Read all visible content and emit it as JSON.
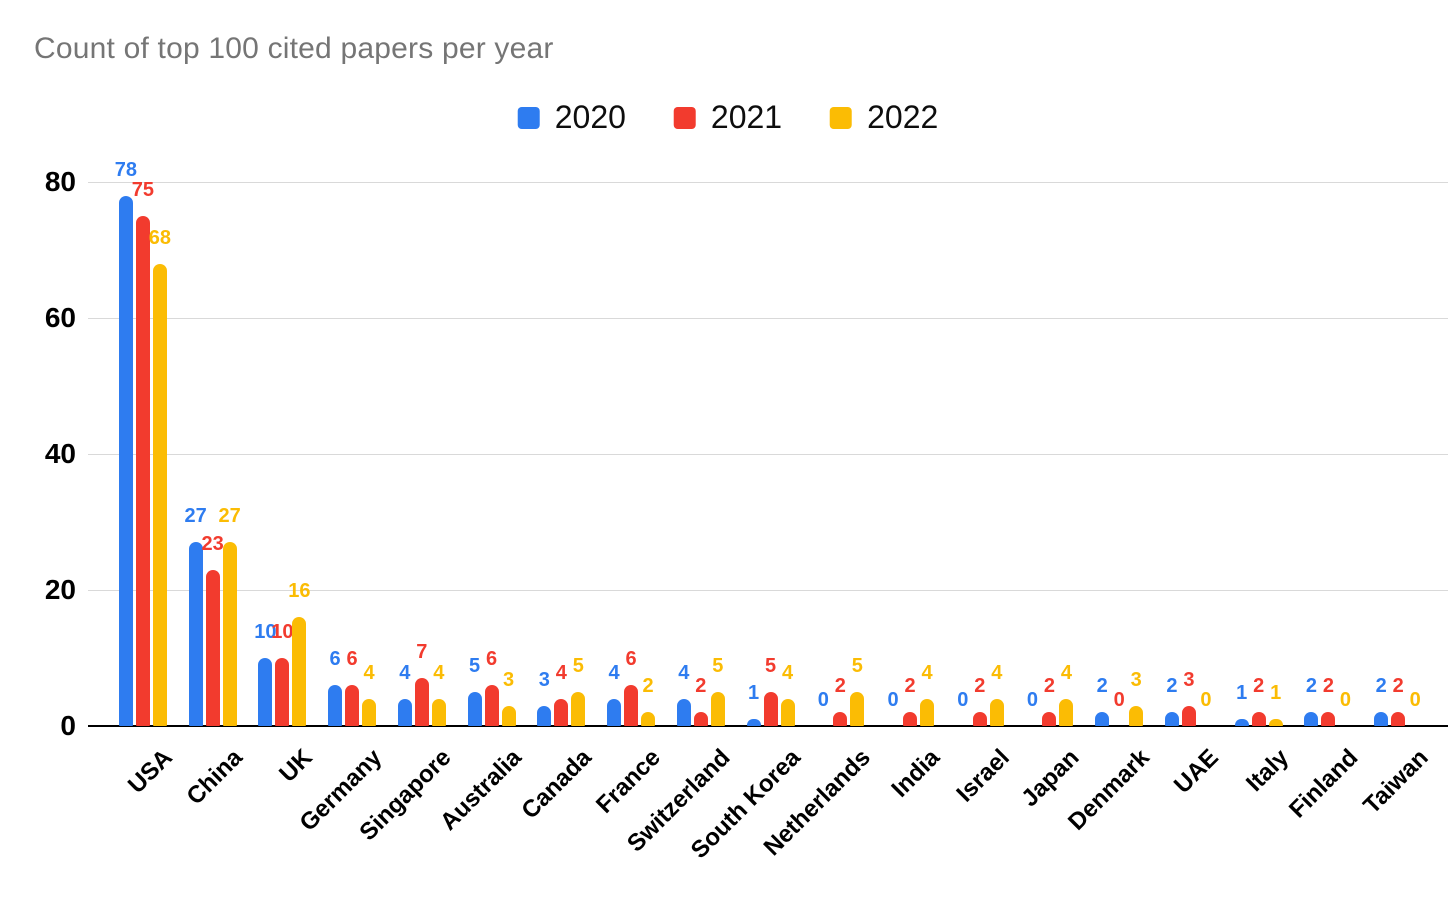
{
  "title": "Count of top 100 cited papers per year",
  "legend": {
    "items": [
      {
        "label": "2020",
        "color": "#2E7CF0"
      },
      {
        "label": "2021",
        "color": "#F23B2E"
      },
      {
        "label": "2022",
        "color": "#FBBC04"
      }
    ]
  },
  "y_axis": {
    "tick_labels": [
      "0",
      "20",
      "40",
      "60",
      "80"
    ]
  },
  "chart_data": {
    "type": "bar",
    "title": "Count of top 100 cited papers per year",
    "categories": [
      "USA",
      "China",
      "UK",
      "Germany",
      "Singapore",
      "Australia",
      "Canada",
      "France",
      "Switzerland",
      "South Korea",
      "Netherlands",
      "India",
      "Israel",
      "Japan",
      "Denmark",
      "UAE",
      "Italy",
      "Finland",
      "Taiwan"
    ],
    "series": [
      {
        "name": "2020",
        "color": "#2E7CF0",
        "values": [
          78,
          27,
          10,
          6,
          4,
          5,
          3,
          4,
          4,
          1,
          0,
          0,
          0,
          0,
          2,
          2,
          1,
          2,
          2
        ]
      },
      {
        "name": "2021",
        "color": "#F23B2E",
        "values": [
          75,
          23,
          10,
          6,
          7,
          6,
          4,
          6,
          2,
          5,
          2,
          2,
          2,
          2,
          0,
          3,
          2,
          2,
          2
        ]
      },
      {
        "name": "2022",
        "color": "#FBBC04",
        "values": [
          68,
          27,
          16,
          4,
          4,
          3,
          5,
          2,
          5,
          4,
          5,
          4,
          4,
          4,
          3,
          0,
          1,
          0,
          0
        ]
      }
    ],
    "xlabel": "",
    "ylabel": "",
    "ylim": [
      0,
      80
    ],
    "yticks": [
      0,
      20,
      40,
      60,
      80
    ],
    "grid": true,
    "legend_position": "top",
    "data_labels": true,
    "x_label_rotation_deg": -45
  }
}
